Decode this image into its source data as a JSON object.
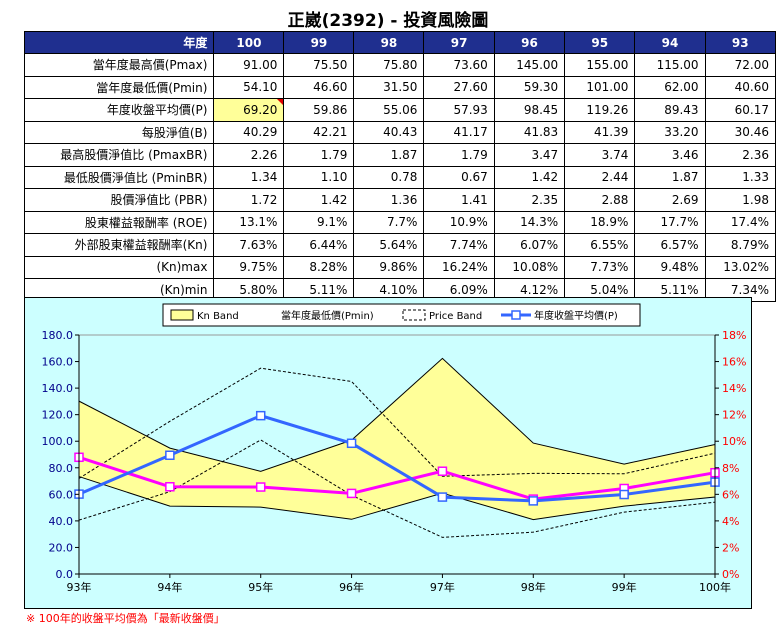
{
  "title": "正崴(2392) - 投資風險圖",
  "table": {
    "header_label": "年度",
    "years": [
      "100",
      "99",
      "98",
      "97",
      "96",
      "95",
      "94",
      "93"
    ],
    "rows": [
      {
        "label": "當年度最高價(Pmax)",
        "values": [
          "91.00",
          "75.50",
          "75.80",
          "73.60",
          "145.00",
          "155.00",
          "115.00",
          "72.00"
        ]
      },
      {
        "label": "當年度最低價(Pmin)",
        "values": [
          "54.10",
          "46.60",
          "31.50",
          "27.60",
          "59.30",
          "101.00",
          "62.00",
          "40.60"
        ]
      },
      {
        "label": "年度收盤平均價(P)",
        "values": [
          "69.20",
          "59.86",
          "55.06",
          "57.93",
          "98.45",
          "119.26",
          "89.43",
          "60.17"
        ]
      },
      {
        "label": "每股淨值(B)",
        "values": [
          "40.29",
          "42.21",
          "40.43",
          "41.17",
          "41.83",
          "41.39",
          "33.20",
          "30.46"
        ]
      },
      {
        "label": "最高股價淨值比 (PmaxBR)",
        "values": [
          "2.26",
          "1.79",
          "1.87",
          "1.79",
          "3.47",
          "3.74",
          "3.46",
          "2.36"
        ]
      },
      {
        "label": "最低股價淨值比 (PminBR)",
        "values": [
          "1.34",
          "1.10",
          "0.78",
          "0.67",
          "1.42",
          "2.44",
          "1.87",
          "1.33"
        ]
      },
      {
        "label": "股價淨值比 (PBR)",
        "values": [
          "1.72",
          "1.42",
          "1.36",
          "1.41",
          "2.35",
          "2.88",
          "2.69",
          "1.98"
        ]
      },
      {
        "label": "股東權益報酬率 (ROE)",
        "values": [
          "13.1%",
          "9.1%",
          "7.7%",
          "10.9%",
          "14.3%",
          "18.9%",
          "17.7%",
          "17.4%"
        ]
      },
      {
        "label": "外部股東權益報酬率(Kn)",
        "values": [
          "7.63%",
          "6.44%",
          "5.64%",
          "7.74%",
          "6.07%",
          "6.55%",
          "6.57%",
          "8.79%"
        ]
      },
      {
        "label": "(Kn)max",
        "values": [
          "9.75%",
          "8.28%",
          "9.86%",
          "16.24%",
          "10.08%",
          "7.73%",
          "9.48%",
          "13.02%"
        ]
      },
      {
        "label": "(Kn)min",
        "values": [
          "5.80%",
          "5.11%",
          "4.10%",
          "6.09%",
          "4.12%",
          "5.04%",
          "5.11%",
          "7.34%"
        ]
      }
    ]
  },
  "chart_data": {
    "type": "line",
    "categories": [
      "93年",
      "94年",
      "95年",
      "96年",
      "97年",
      "98年",
      "99年",
      "100年"
    ],
    "legend": [
      "Kn Band",
      "當年度最低價(Pmin)",
      "Price Band",
      "年度收盤平均價(P)"
    ],
    "left_axis": {
      "min": 0,
      "max": 180,
      "step": 20,
      "ticks": [
        "0.0",
        "20.0",
        "40.0",
        "60.0",
        "80.0",
        "100.0",
        "120.0",
        "140.0",
        "160.0",
        "180.0"
      ]
    },
    "right_axis": {
      "min": 0,
      "max": 18,
      "step": 2,
      "ticks": [
        "0%",
        "2%",
        "4%",
        "6%",
        "8%",
        "10%",
        "12%",
        "14%",
        "16%",
        "18%"
      ]
    },
    "series": [
      {
        "name": "Kn max",
        "axis": "right",
        "values": [
          13.02,
          9.48,
          7.73,
          10.08,
          16.24,
          9.86,
          8.28,
          9.75
        ]
      },
      {
        "name": "Kn min",
        "axis": "right",
        "values": [
          7.34,
          5.11,
          5.04,
          4.12,
          6.09,
          4.1,
          5.11,
          5.8
        ]
      },
      {
        "name": "Kn",
        "axis": "right",
        "values": [
          8.79,
          6.57,
          6.55,
          6.07,
          7.74,
          5.64,
          6.44,
          7.63
        ]
      },
      {
        "name": "Price Band upper",
        "axis": "left",
        "values": [
          72.0,
          115.0,
          155.0,
          145.0,
          73.6,
          75.8,
          75.5,
          91.0
        ]
      },
      {
        "name": "Price Band lower",
        "axis": "left",
        "values": [
          40.6,
          62.0,
          101.0,
          59.3,
          27.6,
          31.5,
          46.6,
          54.1
        ]
      },
      {
        "name": "年度收盤平均價(P)",
        "axis": "left",
        "values": [
          60.17,
          89.43,
          119.26,
          98.45,
          57.93,
          55.06,
          59.86,
          69.2
        ]
      }
    ],
    "colors": {
      "band_fill": "#ffff99",
      "kn_line": "#ff00ff",
      "price_line": "#3366ff",
      "axis_left": "#00008b",
      "axis_right": "#ff0000"
    }
  },
  "note": "※ 100年的收盤平均價為「最新收盤價」"
}
